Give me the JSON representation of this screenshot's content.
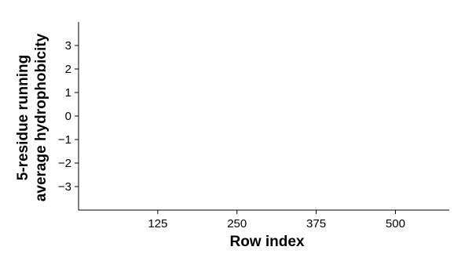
{
  "chart_data": {
    "type": "line",
    "title": "",
    "xlabel": "Row index",
    "ylabel": [
      "5-residue running",
      "average hydrophobicity"
    ],
    "xlim": [
      0,
      585
    ],
    "ylim": [
      -4.0,
      4.0
    ],
    "xticks": [
      125,
      250,
      375,
      500
    ],
    "yticks": [
      -3,
      -2,
      -1,
      0,
      1,
      2,
      3
    ],
    "xtick_labels": [
      "125",
      "250",
      "375",
      "500"
    ],
    "ytick_labels": [
      "−3",
      "−2",
      "−1",
      "0",
      "1",
      "2",
      "3"
    ],
    "grid": false,
    "legend": "none",
    "series": [
      {
        "color": "#3333dd",
        "x_start": 1,
        "x_step": 1,
        "y": []
      }
    ]
  }
}
